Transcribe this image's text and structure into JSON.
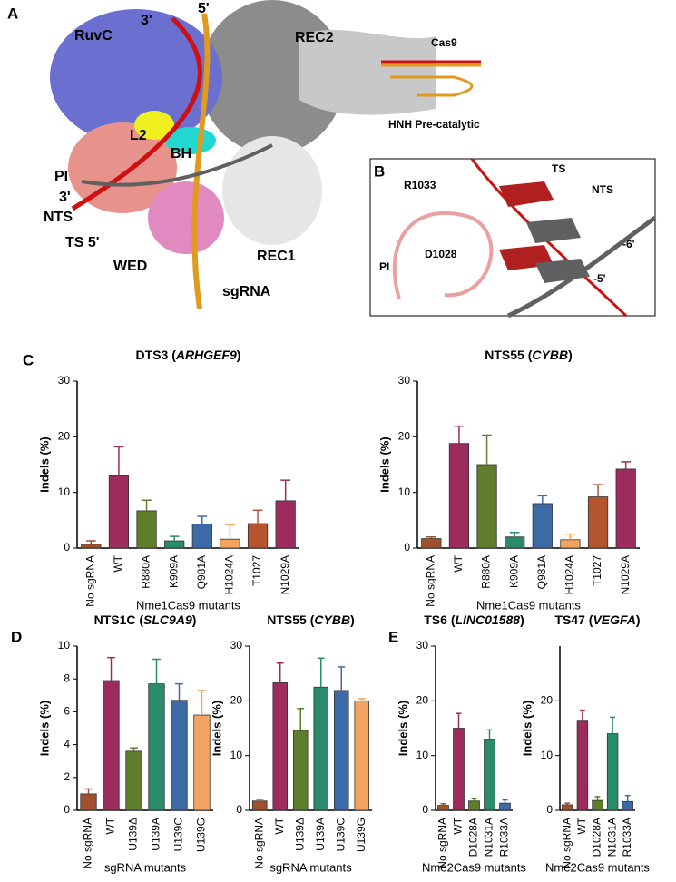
{
  "panel_labels": {
    "a": "A",
    "b": "B",
    "c": "C",
    "d": "D",
    "e": "E"
  },
  "structure": {
    "ruvc": "RuvC",
    "rec2": "REC2",
    "three_top": "3'",
    "five_top": "5'",
    "l2": "L2",
    "bh": "BH",
    "pi": "PI",
    "three_nts": "3'",
    "nts": "NTS",
    "ts": "TS 5'",
    "rec1": "REC1",
    "wed": "WED",
    "sgrna": "sgRNA",
    "cas9": "Cas9",
    "state": "HNH Pre-catalytic"
  },
  "closeup": {
    "r1033": "R1033",
    "ts": "TS",
    "nts": "NTS",
    "m6": "-6'",
    "pi": "PI",
    "d1028": "D1028",
    "m5": "-5'"
  },
  "chart_data": [
    {
      "type": "bar",
      "title_parts": [
        "DTS3 (",
        "ARHGEF9",
        ")"
      ],
      "y_label": "Indels (%)",
      "x_label": "Nme1Cas9 mutants",
      "categories": [
        "No sgRNA",
        "WT",
        "R880A",
        "K909A",
        "Q981A",
        "H1024A",
        "T1027",
        "N1029A"
      ],
      "values": [
        0.7,
        13,
        6.7,
        1.3,
        4.3,
        1.6,
        4.4,
        8.5
      ],
      "errors": [
        0.6,
        5.2,
        1.9,
        0.8,
        1.4,
        2.6,
        2.4,
        3.7
      ],
      "colors": [
        "#a0502c",
        "#9b2c5c",
        "#5f7d2a",
        "#2a8a6c",
        "#3c6aa6",
        "#f4a460",
        "#b4552f",
        "#9b2c5c"
      ],
      "ylim": [
        0,
        30
      ],
      "yticks": [
        0,
        10,
        20,
        30
      ]
    },
    {
      "type": "bar",
      "title_parts": [
        "NTS55 (",
        "CYBB",
        ")"
      ],
      "y_label": "Indels (%)",
      "x_label": "Nme1Cas9 mutants",
      "categories": [
        "No sgRNA",
        "WT",
        "R880A",
        "K909A",
        "Q981A",
        "H1024A",
        "T1027",
        "N1029A"
      ],
      "values": [
        1.7,
        18.8,
        15,
        2,
        8,
        1.5,
        9.2,
        14.2
      ],
      "errors": [
        0.3,
        3.1,
        5.3,
        0.8,
        1.4,
        1,
        2.2,
        1.3
      ],
      "colors": [
        "#a0502c",
        "#9b2c5c",
        "#5f7d2a",
        "#2a8a6c",
        "#3c6aa6",
        "#f4a460",
        "#b4552f",
        "#9b2c5c"
      ],
      "ylim": [
        0,
        30
      ],
      "yticks": [
        0,
        10,
        20,
        30
      ]
    },
    {
      "type": "bar",
      "title_parts": [
        "NTS1C (",
        "SLC9A9",
        ")"
      ],
      "y_label": "Indels (%)",
      "x_label": "sgRNA mutants",
      "categories": [
        "No sgRNA",
        "WT",
        "U139Δ",
        "U139A",
        "U139C",
        "U139G"
      ],
      "values": [
        1,
        7.9,
        3.6,
        7.7,
        6.7,
        5.8
      ],
      "errors": [
        0.3,
        1.4,
        0.2,
        1.5,
        1,
        1.5
      ],
      "colors": [
        "#a0502c",
        "#9b2c5c",
        "#5f7d2a",
        "#2a8a6c",
        "#3c6aa6",
        "#f4a460"
      ],
      "ylim": [
        0,
        10
      ],
      "yticks": [
        0,
        2,
        4,
        6,
        8,
        10
      ]
    },
    {
      "type": "bar",
      "title_parts": [
        "NTS55 (",
        "CYBB",
        ")"
      ],
      "y_label": "Indels (%)",
      "x_label": "sgRNA mutants",
      "categories": [
        "No sgRNA",
        "WT",
        "U139Δ",
        "U139A",
        "U139C",
        "U139G"
      ],
      "values": [
        1.7,
        23.3,
        14.6,
        22.5,
        21.9,
        20
      ],
      "errors": [
        0.3,
        3.6,
        4,
        5.3,
        4.3,
        0.4
      ],
      "colors": [
        "#a0502c",
        "#9b2c5c",
        "#5f7d2a",
        "#2a8a6c",
        "#3c6aa6",
        "#f4a460"
      ],
      "ylim": [
        0,
        30
      ],
      "yticks": [
        0,
        10,
        20,
        30
      ]
    },
    {
      "type": "bar",
      "title_parts": [
        "TS6 (",
        "LINC01588",
        ")"
      ],
      "y_label": "Indels (%)",
      "x_label": "Nme2Cas9 mutants",
      "categories": [
        "No sgRNA",
        "WT",
        "D1028A",
        "N1031A",
        "R1033A"
      ],
      "values": [
        0.9,
        15,
        1.7,
        13,
        1.3
      ],
      "errors": [
        0.3,
        2.7,
        0.5,
        1.7,
        0.6
      ],
      "colors": [
        "#a0502c",
        "#9b2c5c",
        "#5f7d2a",
        "#2a8a6c",
        "#3c6aa6"
      ],
      "ylim": [
        0,
        30
      ],
      "yticks": [
        0,
        10,
        20,
        30
      ]
    },
    {
      "type": "bar",
      "title_parts": [
        "TS47 (",
        "VEGFA",
        ")"
      ],
      "y_label": "Indels (%)",
      "x_label": "Nme2Cas9 mutants",
      "categories": [
        "No sgRNA",
        "WT",
        "D1028A",
        "N1031A",
        "R1033A"
      ],
      "values": [
        1,
        16.3,
        1.8,
        14,
        1.6
      ],
      "errors": [
        0.3,
        2,
        0.7,
        3,
        1.1
      ],
      "colors": [
        "#a0502c",
        "#9b2c5c",
        "#5f7d2a",
        "#2a8a6c",
        "#3c6aa6"
      ],
      "ylim": [
        0,
        30
      ],
      "yticks": [
        0,
        10,
        20
      ]
    }
  ]
}
